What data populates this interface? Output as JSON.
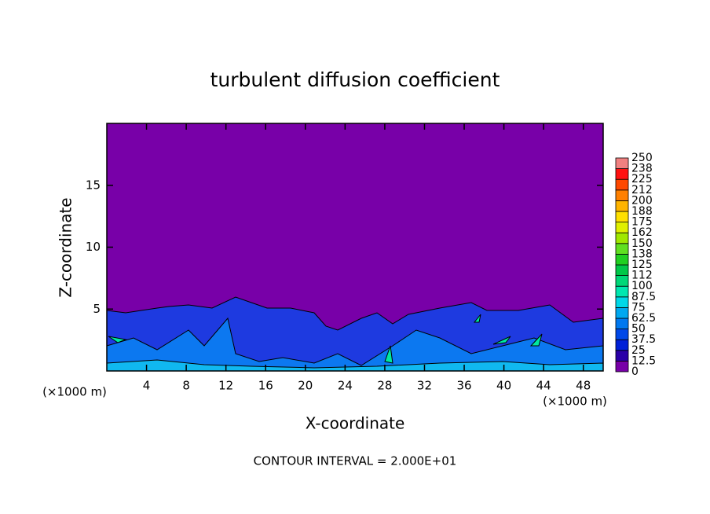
{
  "chart_data": {
    "type": "contour",
    "title": "turbulent diffusion coefficient",
    "x_label": "X-coordinate",
    "y_label": "Z-coordinate",
    "x_unit": "(×1000 m)",
    "annotation": "CONTOUR INTERVAL = 2.000E+01",
    "xlim": [
      0,
      50
    ],
    "xticks": [
      4,
      8,
      12,
      16,
      20,
      24,
      28,
      32,
      36,
      40,
      44,
      48
    ],
    "ylim": [
      0,
      20
    ],
    "yticks": [
      5,
      10,
      15
    ],
    "colorbar": {
      "levels": [
        0,
        12.5,
        25,
        37.5,
        50,
        62.5,
        75,
        87.5,
        100,
        112,
        125,
        138,
        150,
        162,
        175,
        188,
        200,
        212,
        225,
        238,
        250
      ],
      "colors": [
        "#7800a8",
        "#2a00a8",
        "#0020d8",
        "#0048e8",
        "#0078f0",
        "#00a8f0",
        "#00d8e8",
        "#00e8b0",
        "#00d878",
        "#00c848",
        "#20d020",
        "#60e020",
        "#a0e800",
        "#e0f000",
        "#ffe000",
        "#ffb400",
        "#ff8000",
        "#ff4800",
        "#ff1010",
        "#f08080"
      ]
    }
  }
}
